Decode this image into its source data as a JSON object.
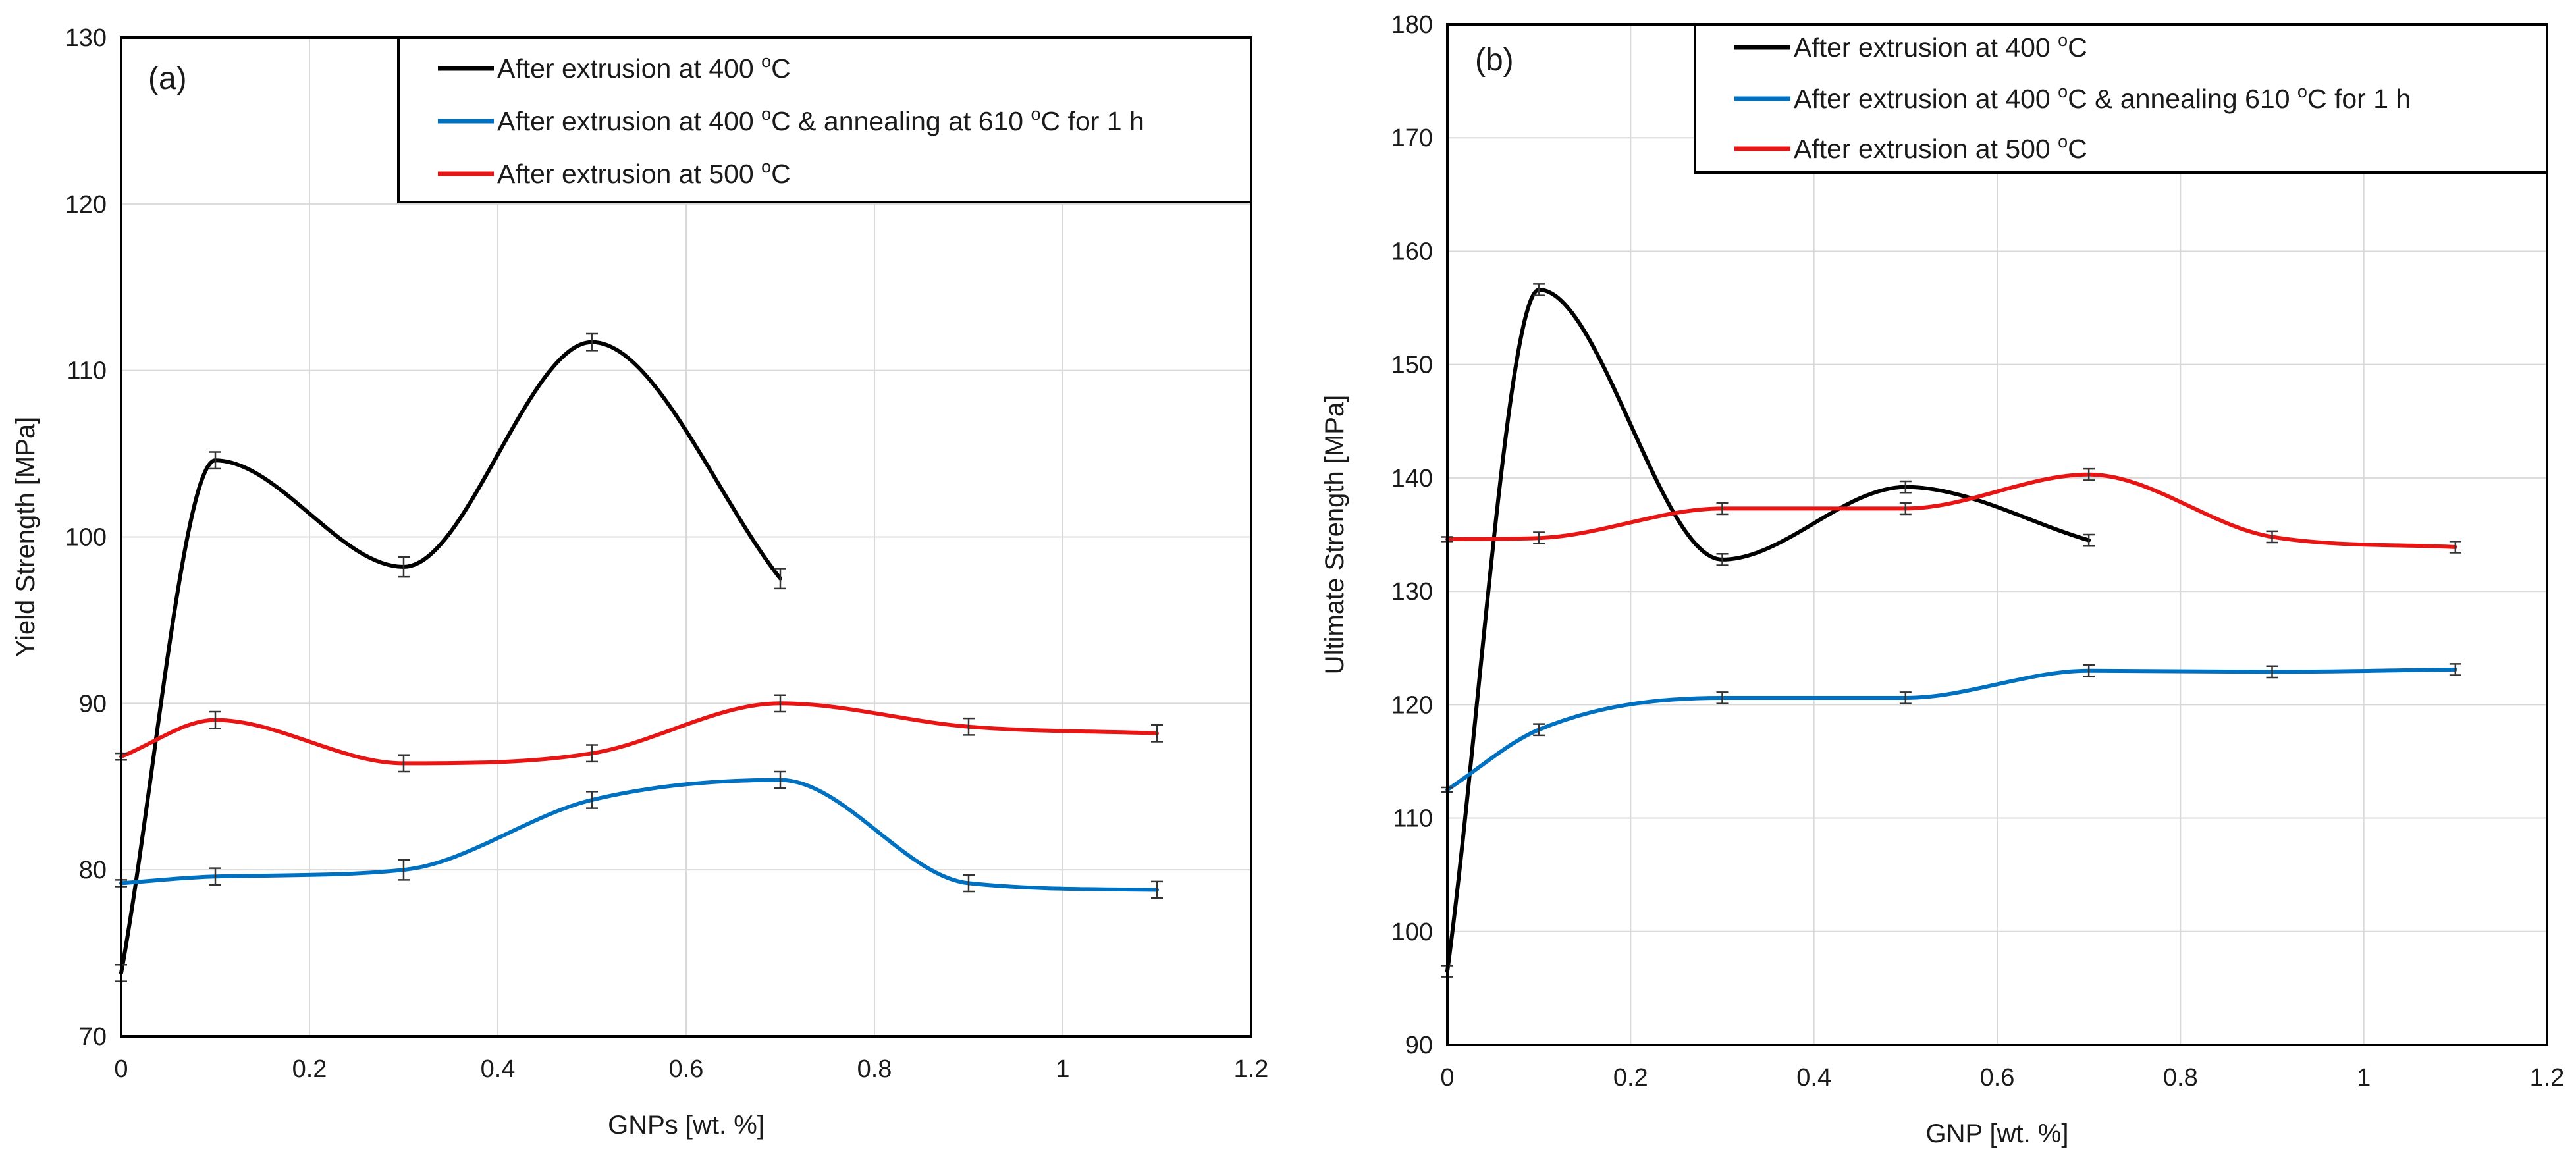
{
  "chart_data": [
    {
      "type": "line",
      "panel_label": "(a)",
      "xlabel": "GNPs [wt. %]",
      "ylabel": "Yield Strength  [MPa]",
      "xlim": [
        0,
        1.2
      ],
      "ylim": [
        70,
        130
      ],
      "x_ticks": [
        0,
        0.2,
        0.4,
        0.6,
        0.8,
        1,
        1.2
      ],
      "x_tick_labels": [
        "0",
        "0.2",
        "0.4",
        "0.6",
        "0.8",
        "1",
        "1.2"
      ],
      "y_ticks": [
        70,
        80,
        90,
        100,
        110,
        120,
        130
      ],
      "y_tick_labels": [
        "70",
        "80",
        "90",
        "100",
        "110",
        "120",
        "130"
      ],
      "grid": true,
      "legend_position": "top-right",
      "series": [
        {
          "name": "After extrusion at 400 °C",
          "legend_parts": [
            "After extrusion at 400 ",
            "o",
            "C"
          ],
          "color": "#000000",
          "x": [
            0,
            0.1,
            0.3,
            0.5,
            0.7
          ],
          "values": [
            73.8,
            104.6,
            98.2,
            111.7,
            97.5
          ],
          "error": [
            0.5,
            0.5,
            0.6,
            0.5,
            0.6
          ]
        },
        {
          "name": "After extrusion at 400 °C & annealing at 610 °C for 1 h",
          "legend_parts": [
            "After extrusion at 400 ",
            "o",
            "C & annealing at 610 ",
            "o",
            "C for 1 h"
          ],
          "color": "#0070c0",
          "x": [
            0,
            0.1,
            0.3,
            0.5,
            0.7,
            0.9,
            1.1
          ],
          "values": [
            79.2,
            79.6,
            80.0,
            84.2,
            85.4,
            79.2,
            78.8
          ],
          "error": [
            0.2,
            0.5,
            0.6,
            0.5,
            0.5,
            0.5,
            0.5
          ]
        },
        {
          "name": "After extrusion at 500 °C",
          "legend_parts": [
            "After extrusion at 500 ",
            "o",
            "C"
          ],
          "color": "#e81515",
          "x": [
            0,
            0.1,
            0.3,
            0.5,
            0.7,
            0.9,
            1.1
          ],
          "values": [
            86.8,
            89.0,
            86.4,
            87.0,
            90.0,
            88.6,
            88.2
          ],
          "error": [
            0.2,
            0.5,
            0.5,
            0.5,
            0.5,
            0.5,
            0.5
          ]
        }
      ]
    },
    {
      "type": "line",
      "panel_label": "(b)",
      "xlabel": "GNP  [wt. %]",
      "ylabel": "Ultimate Strength [MPa]",
      "xlim": [
        0,
        1.2
      ],
      "ylim": [
        90,
        180
      ],
      "x_ticks": [
        0,
        0.2,
        0.4,
        0.6,
        0.8,
        1,
        1.2
      ],
      "x_tick_labels": [
        "0",
        "0.2",
        "0.4",
        "0.6",
        "0.8",
        "1",
        "1.2"
      ],
      "y_ticks": [
        90,
        100,
        110,
        120,
        130,
        140,
        150,
        160,
        170,
        180
      ],
      "y_tick_labels": [
        "90",
        "100",
        "110",
        "120",
        "130",
        "140",
        "150",
        "160",
        "170",
        "180"
      ],
      "grid": true,
      "legend_position": "top-right",
      "series": [
        {
          "name": "After extrusion at 400 °C",
          "legend_parts": [
            "After extrusion at 400 ",
            "o",
            "C"
          ],
          "color": "#000000",
          "x": [
            0,
            0.1,
            0.3,
            0.5,
            0.7
          ],
          "values": [
            96.5,
            156.6,
            132.8,
            139.2,
            134.5
          ],
          "error": [
            0.5,
            0.5,
            0.5,
            0.5,
            0.5
          ]
        },
        {
          "name": "After extrusion at 400 °C & annealing 610 °C for 1 h",
          "legend_parts": [
            "After extrusion at 400 ",
            "o",
            "C & annealing 610 ",
            "o",
            "C for 1 h"
          ],
          "color": "#0070c0",
          "x": [
            0,
            0.1,
            0.3,
            0.5,
            0.7,
            0.9,
            1.1
          ],
          "values": [
            112.5,
            117.8,
            120.6,
            120.6,
            123.0,
            122.9,
            123.1
          ],
          "error": [
            0.2,
            0.5,
            0.5,
            0.5,
            0.5,
            0.5,
            0.5
          ]
        },
        {
          "name": "After extrusion at 500 °C",
          "legend_parts": [
            "After extrusion at 500 ",
            "o",
            "C"
          ],
          "color": "#e81515",
          "x": [
            0,
            0.1,
            0.3,
            0.5,
            0.7,
            0.9,
            1.1
          ],
          "values": [
            134.6,
            134.7,
            137.3,
            137.3,
            140.3,
            134.8,
            133.9
          ],
          "error": [
            0.2,
            0.5,
            0.5,
            0.5,
            0.5,
            0.5,
            0.5
          ]
        }
      ]
    }
  ]
}
